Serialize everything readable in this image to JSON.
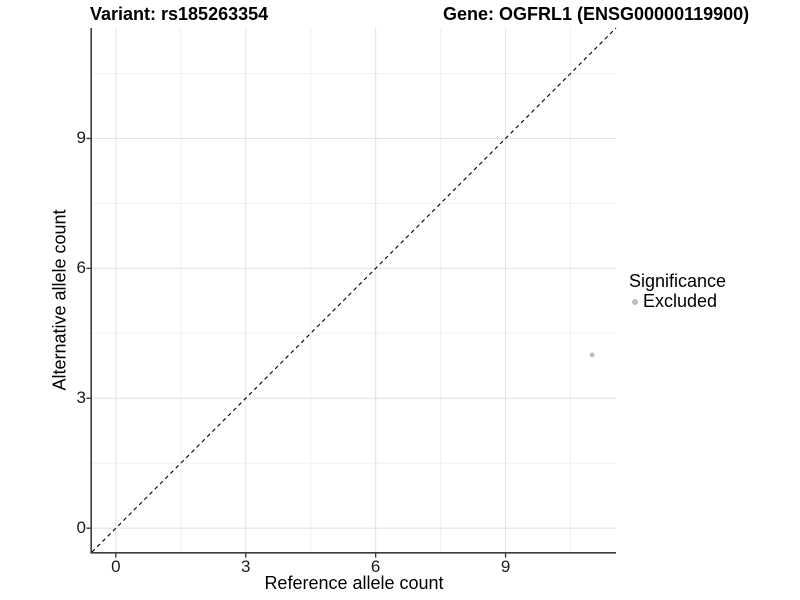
{
  "chart_data": {
    "type": "scatter",
    "title_left": "Variant: rs185263354",
    "title_right": "Gene: OGFRL1 (ENSG00000119900)",
    "xlabel": "Reference allele count",
    "ylabel": "Alternative allele count",
    "xlim": [
      -0.55,
      11.55
    ],
    "ylim": [
      -0.55,
      11.55
    ],
    "x_ticks": [
      0,
      3,
      6,
      9
    ],
    "y_ticks": [
      0,
      3,
      6,
      9
    ],
    "x_minor_ticks": [
      1.5,
      4.5,
      7.5,
      10.5
    ],
    "y_minor_ticks": [
      1.5,
      4.5,
      7.5,
      10.5
    ],
    "grid": true,
    "aspect": "equal",
    "series": [
      {
        "name": "Excluded",
        "color": "#bcbcbc",
        "points": [
          {
            "x": 11,
            "y": 4
          }
        ]
      }
    ],
    "reference_line": {
      "type": "identity",
      "style": "dashed",
      "color": "#000000"
    },
    "legend": {
      "title": "Significance",
      "position": "right",
      "items": [
        {
          "label": "Excluded",
          "color": "#bcbcbc"
        }
      ]
    },
    "colors": {
      "axis_line": "#3c3c3c",
      "tick_mark": "#3c3c3c",
      "grid_major": "#e4e4e4",
      "grid_minor": "#f0f0f0",
      "background": "#ffffff"
    }
  }
}
